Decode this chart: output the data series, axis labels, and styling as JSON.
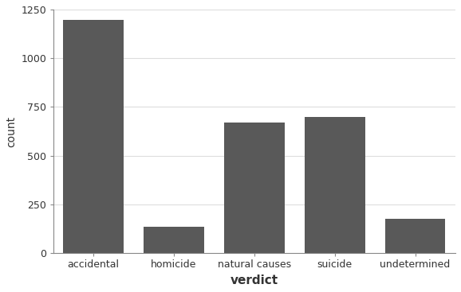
{
  "categories": [
    "accidental",
    "homicide",
    "natural causes",
    "suicide",
    "undetermined"
  ],
  "values": [
    1198,
    135,
    672,
    700,
    178
  ],
  "bar_color": "#595959",
  "bar_width": 0.75,
  "xlabel": "verdict",
  "ylabel": "count",
  "ylim": [
    0,
    1250
  ],
  "yticks": [
    0,
    250,
    500,
    750,
    1000,
    1250
  ],
  "background_color": "#ffffff",
  "panel_background": "#ffffff",
  "grid_color": "#dddddd",
  "xlabel_fontsize": 11,
  "ylabel_fontsize": 10,
  "xlabel_fontweight": "bold",
  "ylabel_fontweight": "normal",
  "tick_fontsize": 9,
  "spine_color": "#888888"
}
